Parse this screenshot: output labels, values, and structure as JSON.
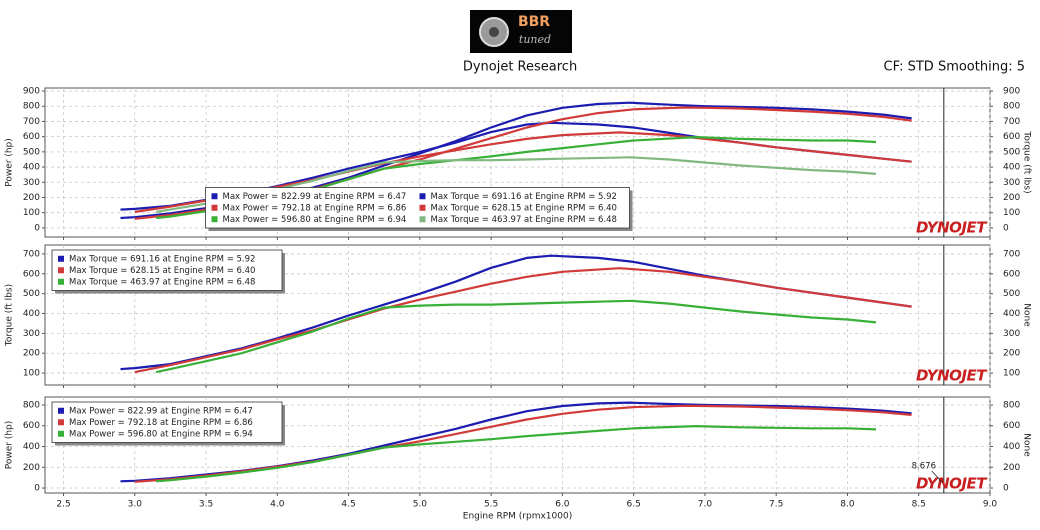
{
  "header": {
    "logo_main": "BBR",
    "logo_sub": "tuned",
    "title": "Dynojet Research",
    "settings": "CF: STD Smoothing: 5",
    "brand_mark": "DYNOJET"
  },
  "cursor": 8.676,
  "chart_data": [
    {
      "type": "line",
      "ylabel": "Power (hp)",
      "y2label": "Torque (ft lbs)",
      "xlim": [
        2.37,
        9.0
      ],
      "xticks": [
        2.5,
        {
          "value": 3,
          "label": "3.0"
        },
        3.5,
        {
          "value": 4,
          "label": "4.0"
        },
        4.5,
        {
          "value": 5,
          "label": "5.0"
        },
        5.5,
        {
          "value": 6,
          "label": "6.0"
        },
        6.5,
        {
          "value": 7,
          "label": "7.0"
        },
        7.5,
        {
          "value": 8,
          "label": "8.0"
        },
        8.5,
        {
          "value": 9,
          "label": "9.0"
        }
      ],
      "ylim": [
        -60,
        920
      ],
      "yticks": [
        0,
        100,
        200,
        300,
        400,
        500,
        600,
        700,
        800,
        900
      ],
      "y2lim": [
        -60,
        920
      ],
      "y2ticks": [
        0,
        100,
        200,
        300,
        400,
        500,
        600,
        700,
        800,
        900
      ],
      "grid": true,
      "legend": "bottom-center",
      "series": [
        {
          "name": "Max Power = 822.99 at Engine RPM = 6.47",
          "color": "#1c1cb0",
          "x": [
            2.9,
            3.0,
            3.25,
            3.5,
            3.75,
            4.0,
            4.25,
            4.5,
            4.75,
            5.0,
            5.25,
            5.5,
            5.75,
            6.0,
            6.25,
            6.47,
            6.75,
            7.0,
            7.25,
            7.5,
            7.75,
            8.0,
            8.25,
            8.45
          ],
          "values": [
            65,
            70,
            95,
            130,
            165,
            210,
            265,
            330,
            410,
            490,
            570,
            660,
            740,
            790,
            815,
            823,
            810,
            800,
            795,
            790,
            780,
            765,
            745,
            720
          ]
        },
        {
          "name": "Max Torque = 691.16 at Engine RPM = 5.92",
          "color": "#1c1cb0",
          "axis": "y2",
          "x": [
            2.9,
            3.0,
            3.25,
            3.5,
            3.75,
            4.0,
            4.25,
            4.5,
            4.75,
            5.0,
            5.25,
            5.5,
            5.75,
            5.92,
            6.25,
            6.5,
            6.75,
            7.0,
            7.25,
            7.5,
            7.75,
            8.0,
            8.25,
            8.45
          ],
          "values": [
            120,
            125,
            145,
            185,
            225,
            275,
            330,
            390,
            445,
            500,
            560,
            630,
            680,
            691,
            680,
            660,
            625,
            590,
            560,
            530,
            505,
            480,
            455,
            435
          ]
        },
        {
          "name": "Max Power = 792.18 at Engine RPM = 6.86",
          "color": "#d23a3a",
          "x": [
            3.0,
            3.25,
            3.5,
            3.75,
            4.0,
            4.25,
            4.5,
            4.75,
            5.0,
            5.25,
            5.5,
            5.75,
            6.0,
            6.25,
            6.5,
            6.86,
            7.0,
            7.25,
            7.5,
            7.75,
            8.0,
            8.25,
            8.45
          ],
          "values": [
            60,
            85,
            120,
            160,
            205,
            255,
            320,
            390,
            450,
            520,
            590,
            660,
            715,
            755,
            780,
            792,
            790,
            785,
            775,
            765,
            750,
            730,
            705
          ]
        },
        {
          "name": "Max Torque = 628.15 at Engine RPM = 6.40",
          "color": "#d23a3a",
          "axis": "y2",
          "x": [
            3.0,
            3.25,
            3.5,
            3.75,
            4.0,
            4.25,
            4.5,
            4.75,
            5.0,
            5.25,
            5.5,
            5.75,
            6.0,
            6.4,
            6.75,
            7.0,
            7.25,
            7.5,
            7.75,
            8.0,
            8.25,
            8.45
          ],
          "values": [
            105,
            140,
            180,
            220,
            270,
            315,
            370,
            425,
            470,
            510,
            550,
            585,
            610,
            628,
            610,
            585,
            560,
            530,
            505,
            480,
            455,
            435
          ]
        },
        {
          "name": "Max Power = 596.80 at Engine RPM = 6.94",
          "color": "#38b038",
          "x": [
            3.15,
            3.25,
            3.5,
            3.75,
            4.0,
            4.25,
            4.5,
            4.75,
            5.0,
            5.25,
            5.5,
            5.75,
            6.0,
            6.25,
            6.5,
            6.94,
            7.25,
            7.5,
            7.75,
            8.0,
            8.2
          ],
          "values": [
            65,
            75,
            110,
            150,
            195,
            250,
            320,
            390,
            420,
            445,
            470,
            500,
            525,
            550,
            575,
            597,
            585,
            580,
            575,
            575,
            565
          ]
        },
        {
          "name": "Max Torque = 463.97 at Engine RPM = 6.48",
          "color": "#80b880",
          "axis": "y2",
          "x": [
            3.15,
            3.25,
            3.5,
            3.75,
            4.0,
            4.25,
            4.5,
            4.75,
            5.0,
            5.25,
            5.5,
            5.75,
            6.0,
            6.48,
            6.75,
            7.0,
            7.25,
            7.5,
            7.75,
            8.0,
            8.2
          ],
          "values": [
            105,
            120,
            160,
            200,
            255,
            310,
            375,
            430,
            440,
            445,
            445,
            450,
            455,
            464,
            450,
            430,
            410,
            395,
            380,
            370,
            355
          ]
        }
      ]
    },
    {
      "type": "line",
      "ylabel": "Torque (ft lbs)",
      "y2label": "None",
      "xlim": [
        2.37,
        9.0
      ],
      "xticks": [
        2.5,
        {
          "value": 3,
          "label": "3.0"
        },
        3.5,
        {
          "value": 4,
          "label": "4.0"
        },
        4.5,
        {
          "value": 5,
          "label": "5.0"
        },
        5.5,
        {
          "value": 6,
          "label": "6.0"
        },
        6.5,
        {
          "value": 7,
          "label": "7.0"
        },
        7.5,
        {
          "value": 8,
          "label": "8.0"
        },
        8.5,
        {
          "value": 9,
          "label": "9.0"
        }
      ],
      "ylim": [
        40,
        745
      ],
      "yticks": [
        100,
        200,
        300,
        400,
        500,
        600,
        700
      ],
      "y2lim": [
        40,
        745
      ],
      "y2ticks": [
        100,
        200,
        300,
        400,
        500,
        600,
        700
      ],
      "grid": true,
      "legend": "top-left",
      "series": [
        {
          "name": "Max Torque = 691.16 at Engine RPM = 5.92",
          "color": "#1c1cb0",
          "x": [
            2.9,
            3.0,
            3.25,
            3.5,
            3.75,
            4.0,
            4.25,
            4.5,
            4.75,
            5.0,
            5.25,
            5.5,
            5.75,
            5.92,
            6.25,
            6.5,
            6.75,
            7.0,
            7.25,
            7.5,
            7.75,
            8.0,
            8.25,
            8.45
          ],
          "values": [
            120,
            125,
            145,
            185,
            225,
            275,
            330,
            390,
            445,
            500,
            560,
            630,
            680,
            691,
            680,
            660,
            625,
            590,
            560,
            530,
            505,
            480,
            455,
            435
          ]
        },
        {
          "name": "Max Torque = 628.15 at Engine RPM = 6.40",
          "color": "#d23a3a",
          "x": [
            3.0,
            3.25,
            3.5,
            3.75,
            4.0,
            4.25,
            4.5,
            4.75,
            5.0,
            5.25,
            5.5,
            5.75,
            6.0,
            6.4,
            6.75,
            7.0,
            7.25,
            7.5,
            7.75,
            8.0,
            8.25,
            8.45
          ],
          "values": [
            105,
            140,
            180,
            220,
            270,
            315,
            370,
            425,
            470,
            510,
            550,
            585,
            610,
            628,
            610,
            585,
            560,
            530,
            505,
            480,
            455,
            435
          ]
        },
        {
          "name": "Max Torque = 463.97 at Engine RPM = 6.48",
          "color": "#38b038",
          "x": [
            3.15,
            3.25,
            3.5,
            3.75,
            4.0,
            4.25,
            4.5,
            4.75,
            5.0,
            5.25,
            5.5,
            5.75,
            6.0,
            6.48,
            6.75,
            7.0,
            7.25,
            7.5,
            7.75,
            8.0,
            8.2
          ],
          "values": [
            105,
            120,
            160,
            200,
            255,
            310,
            375,
            430,
            440,
            445,
            445,
            450,
            455,
            464,
            450,
            430,
            410,
            395,
            380,
            370,
            355
          ]
        }
      ]
    },
    {
      "type": "line",
      "ylabel": "Power (hp)",
      "y2label": "None",
      "xlabel": "Engine RPM (rpmx1000)",
      "xlim": [
        2.37,
        9.0
      ],
      "xticks": [
        2.5,
        {
          "value": 3,
          "label": "3.0"
        },
        3.5,
        {
          "value": 4,
          "label": "4.0"
        },
        4.5,
        {
          "value": 5,
          "label": "5.0"
        },
        5.5,
        {
          "value": 6,
          "label": "6.0"
        },
        6.5,
        {
          "value": 7,
          "label": "7.0"
        },
        7.5,
        {
          "value": 8,
          "label": "8.0"
        },
        8.5,
        {
          "value": 9,
          "label": "9.0"
        }
      ],
      "ylim": [
        -48,
        877
      ],
      "yticks": [
        0,
        200,
        400,
        600,
        800
      ],
      "y2lim": [
        -48,
        877
      ],
      "y2ticks": [
        0,
        200,
        400,
        600,
        800
      ],
      "grid": true,
      "legend": "top-left",
      "series": [
        {
          "name": "Max Power = 822.99 at Engine RPM = 6.47",
          "color": "#1c1cb0",
          "x": [
            2.9,
            3.0,
            3.25,
            3.5,
            3.75,
            4.0,
            4.25,
            4.5,
            4.75,
            5.0,
            5.25,
            5.5,
            5.75,
            6.0,
            6.25,
            6.47,
            6.75,
            7.0,
            7.25,
            7.5,
            7.75,
            8.0,
            8.25,
            8.45
          ],
          "values": [
            65,
            70,
            95,
            130,
            165,
            210,
            265,
            330,
            410,
            490,
            570,
            660,
            740,
            790,
            815,
            823,
            810,
            800,
            795,
            790,
            780,
            765,
            745,
            720
          ]
        },
        {
          "name": "Max Power = 792.18 at Engine RPM = 6.86",
          "color": "#d23a3a",
          "x": [
            3.0,
            3.25,
            3.5,
            3.75,
            4.0,
            4.25,
            4.5,
            4.75,
            5.0,
            5.25,
            5.5,
            5.75,
            6.0,
            6.25,
            6.5,
            6.86,
            7.0,
            7.25,
            7.5,
            7.75,
            8.0,
            8.25,
            8.45
          ],
          "values": [
            60,
            85,
            120,
            160,
            205,
            255,
            320,
            390,
            450,
            520,
            590,
            660,
            715,
            755,
            780,
            792,
            790,
            785,
            775,
            765,
            750,
            730,
            705
          ]
        },
        {
          "name": "Max Power = 596.80 at Engine RPM = 6.94",
          "color": "#38b038",
          "x": [
            3.15,
            3.25,
            3.5,
            3.75,
            4.0,
            4.25,
            4.5,
            4.75,
            5.0,
            5.25,
            5.5,
            5.75,
            6.0,
            6.25,
            6.5,
            6.94,
            7.25,
            7.5,
            7.75,
            8.0,
            8.2
          ],
          "values": [
            65,
            75,
            110,
            150,
            195,
            250,
            320,
            390,
            420,
            445,
            470,
            500,
            525,
            550,
            575,
            597,
            585,
            580,
            575,
            575,
            565
          ]
        }
      ]
    }
  ]
}
